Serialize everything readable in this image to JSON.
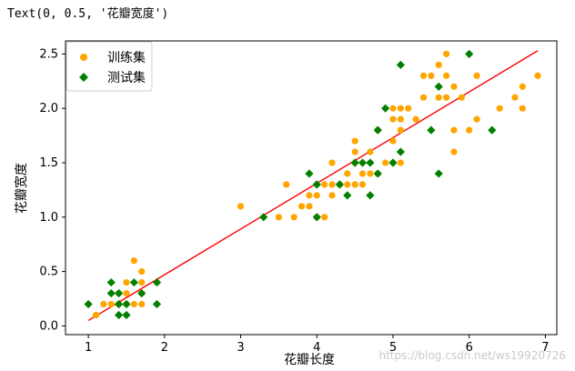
{
  "cell_output": "Text(0, 0.5, '花瓣宽度')",
  "watermark": "https://blog.csdn.net/ws19920726",
  "colors": {
    "train": "#ffa500",
    "test": "#008000",
    "fit": "#ff0000",
    "axis": "#000000"
  },
  "chart_data": {
    "type": "scatter",
    "xlabel": "花瓣长度",
    "ylabel": "花瓣宽度",
    "xlim": [
      0.7,
      7.15
    ],
    "ylim": [
      -0.08,
      2.62
    ],
    "xticks": [
      1,
      2,
      3,
      4,
      5,
      6,
      7
    ],
    "xtick_labels": [
      "1",
      "2",
      "3",
      "4",
      "5",
      "6",
      "7"
    ],
    "yticks": [
      0.0,
      0.5,
      1.0,
      1.5,
      2.0,
      2.5
    ],
    "ytick_labels": [
      "0.0",
      "0.5",
      "1.0",
      "1.5",
      "2.0",
      "2.5"
    ],
    "legend_position": "upper-left",
    "series": [
      {
        "name": "训练集",
        "marker": "circle",
        "color": "orange",
        "points": [
          [
            1.1,
            0.1
          ],
          [
            1.2,
            0.2
          ],
          [
            1.3,
            0.2
          ],
          [
            1.4,
            0.2
          ],
          [
            1.4,
            0.3
          ],
          [
            1.5,
            0.2
          ],
          [
            1.5,
            0.3
          ],
          [
            1.5,
            0.4
          ],
          [
            1.6,
            0.2
          ],
          [
            1.6,
            0.6
          ],
          [
            1.7,
            0.2
          ],
          [
            1.7,
            0.4
          ],
          [
            1.7,
            0.5
          ],
          [
            1.7,
            0.3
          ],
          [
            1.9,
            0.4
          ],
          [
            3.0,
            1.1
          ],
          [
            3.5,
            1.0
          ],
          [
            3.6,
            1.3
          ],
          [
            3.7,
            1.0
          ],
          [
            3.8,
            1.1
          ],
          [
            3.9,
            1.1
          ],
          [
            3.9,
            1.2
          ],
          [
            4.0,
            1.0
          ],
          [
            4.0,
            1.2
          ],
          [
            4.0,
            1.3
          ],
          [
            4.1,
            1.0
          ],
          [
            4.1,
            1.3
          ],
          [
            4.2,
            1.2
          ],
          [
            4.2,
            1.3
          ],
          [
            4.2,
            1.5
          ],
          [
            4.3,
            1.3
          ],
          [
            4.4,
            1.3
          ],
          [
            4.4,
            1.4
          ],
          [
            4.5,
            1.3
          ],
          [
            4.5,
            1.5
          ],
          [
            4.5,
            1.6
          ],
          [
            4.5,
            1.7
          ],
          [
            4.6,
            1.3
          ],
          [
            4.6,
            1.4
          ],
          [
            4.7,
            1.4
          ],
          [
            4.7,
            1.6
          ],
          [
            4.8,
            1.4
          ],
          [
            4.8,
            1.8
          ],
          [
            4.9,
            1.5
          ],
          [
            5.0,
            1.5
          ],
          [
            5.0,
            1.7
          ],
          [
            5.0,
            1.9
          ],
          [
            5.0,
            2.0
          ],
          [
            5.1,
            1.5
          ],
          [
            5.1,
            1.8
          ],
          [
            5.1,
            1.9
          ],
          [
            5.1,
            2.0
          ],
          [
            5.2,
            2.0
          ],
          [
            5.3,
            1.9
          ],
          [
            5.4,
            2.1
          ],
          [
            5.4,
            2.3
          ],
          [
            5.5,
            2.3
          ],
          [
            5.6,
            2.1
          ],
          [
            5.6,
            2.4
          ],
          [
            5.7,
            2.1
          ],
          [
            5.7,
            2.3
          ],
          [
            5.7,
            2.5
          ],
          [
            5.8,
            1.6
          ],
          [
            5.8,
            1.8
          ],
          [
            5.8,
            2.2
          ],
          [
            5.9,
            2.1
          ],
          [
            6.0,
            1.8
          ],
          [
            6.1,
            1.9
          ],
          [
            6.1,
            2.3
          ],
          [
            6.4,
            2.0
          ],
          [
            6.6,
            2.1
          ],
          [
            6.7,
            2.0
          ],
          [
            6.7,
            2.2
          ],
          [
            6.9,
            2.3
          ]
        ]
      },
      {
        "name": "测试集",
        "marker": "diamond",
        "color": "green",
        "points": [
          [
            1.0,
            0.2
          ],
          [
            1.3,
            0.3
          ],
          [
            1.3,
            0.4
          ],
          [
            1.4,
            0.1
          ],
          [
            1.4,
            0.2
          ],
          [
            1.4,
            0.3
          ],
          [
            1.5,
            0.1
          ],
          [
            1.5,
            0.2
          ],
          [
            1.6,
            0.4
          ],
          [
            1.7,
            0.3
          ],
          [
            1.9,
            0.2
          ],
          [
            1.9,
            0.4
          ],
          [
            3.3,
            1.0
          ],
          [
            3.9,
            1.4
          ],
          [
            4.0,
            1.0
          ],
          [
            4.0,
            1.3
          ],
          [
            4.3,
            1.3
          ],
          [
            4.4,
            1.2
          ],
          [
            4.5,
            1.5
          ],
          [
            4.6,
            1.5
          ],
          [
            4.7,
            1.2
          ],
          [
            4.7,
            1.5
          ],
          [
            4.8,
            1.4
          ],
          [
            4.8,
            1.8
          ],
          [
            4.9,
            2.0
          ],
          [
            5.0,
            1.5
          ],
          [
            5.1,
            1.6
          ],
          [
            5.1,
            2.4
          ],
          [
            5.5,
            1.8
          ],
          [
            5.6,
            1.4
          ],
          [
            5.6,
            2.2
          ],
          [
            6.0,
            2.5
          ],
          [
            6.3,
            1.8
          ]
        ]
      },
      {
        "name": "",
        "type": "line",
        "color": "red",
        "points": [
          [
            1.0,
            0.05
          ],
          [
            6.9,
            2.53
          ]
        ]
      }
    ]
  }
}
